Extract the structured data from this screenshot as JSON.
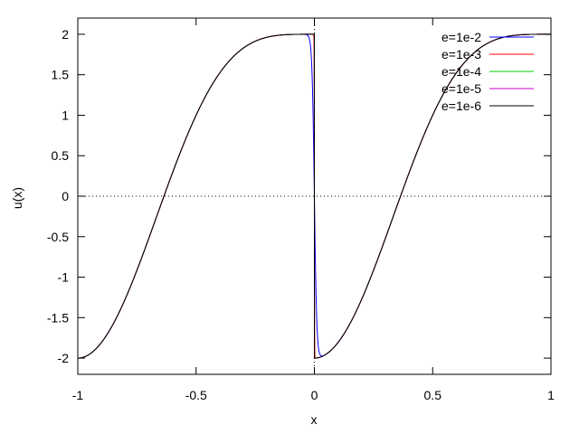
{
  "chart_data": {
    "type": "line",
    "xlabel": "x",
    "ylabel": "u(x)",
    "xlim": [
      -1,
      1
    ],
    "ylim": [
      -2.2,
      2.2
    ],
    "xticks": [
      -1,
      -0.5,
      0,
      0.5,
      1
    ],
    "xtick_labels": [
      "-1",
      "-0.5",
      "0",
      "0.5",
      "1"
    ],
    "yticks": [
      -2,
      -1.5,
      -1,
      -0.5,
      0,
      0.5,
      1,
      1.5,
      2
    ],
    "ytick_labels": [
      "-2",
      "-1.5",
      "-1",
      "-0.5",
      "0",
      "0.5",
      "1",
      "1.5",
      "2"
    ],
    "grid": false,
    "zero_axes": "dotted",
    "legend_position": "top-right",
    "series": [
      {
        "name": "e=1e-2",
        "color": "#0000ff",
        "epsilon": 0.01
      },
      {
        "name": "e=1e-3",
        "color": "#ff0000",
        "epsilon": 0.001
      },
      {
        "name": "e=1e-4",
        "color": "#00cc00",
        "epsilon": 0.0001
      },
      {
        "name": "e=1e-5",
        "color": "#cc00cc",
        "epsilon": 1e-05
      },
      {
        "name": "e=1e-6",
        "color": "#000000",
        "epsilon": 1e-06
      }
    ]
  }
}
